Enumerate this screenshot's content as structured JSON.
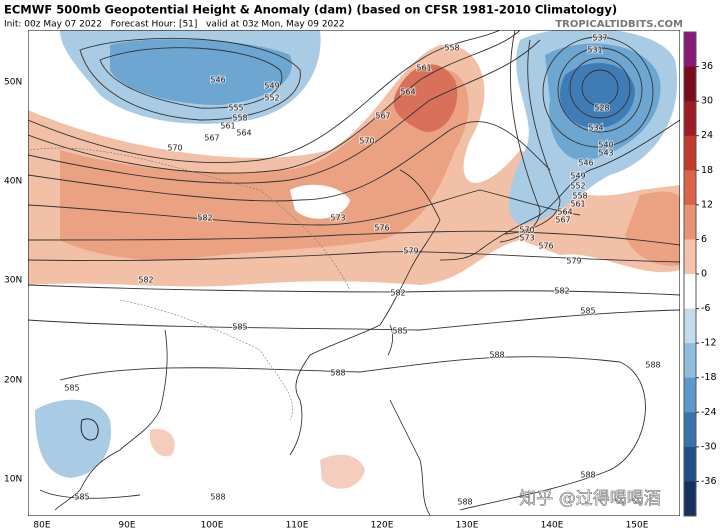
{
  "header": {
    "title": "ECMWF 500mb Geopotential Height & Anomaly (dam) (based on CFSR 1981-2010 Climatology)",
    "subtitle": "Init: 00z May 07 2022   Forecast Hour: [51]   valid at 03z Mon, May 09 2022",
    "brand": "TROPICALTIDBITS.COM"
  },
  "map": {
    "lat_labels": [
      "50N",
      "40N",
      "30N",
      "20N",
      "10N"
    ],
    "lon_labels": [
      "80E",
      "90E",
      "100E",
      "110E",
      "120E",
      "130E",
      "140E",
      "150E"
    ],
    "contour_labels": [
      "546",
      "549",
      "552",
      "555",
      "558",
      "561",
      "564",
      "567",
      "570",
      "558",
      "561",
      "564",
      "567",
      "570",
      "573",
      "576",
      "579",
      "582",
      "582",
      "582",
      "582",
      "579",
      "576",
      "585",
      "585",
      "585",
      "588",
      "588",
      "588",
      "588",
      "588",
      "585",
      "585",
      "588",
      "528",
      "531",
      "537",
      "534",
      "540",
      "543",
      "546",
      "549",
      "552",
      "558",
      "561",
      "564",
      "567",
      "570",
      "573"
    ],
    "watermark": "知乎 @过得喝喝酒"
  },
  "colorbar": {
    "ticks": [
      36,
      30,
      24,
      18,
      12,
      6,
      0,
      -6,
      -12,
      -18,
      -24,
      -30,
      -36
    ],
    "colors": [
      "#8a1a7a",
      "#7a0d1c",
      "#9e1c24",
      "#c23a2c",
      "#db6448",
      "#ea9274",
      "#f4c3ac",
      "#ffffff",
      "#c3dcec",
      "#8fbedd",
      "#5d9acb",
      "#3a73ac",
      "#23508a",
      "#15325f"
    ]
  }
}
